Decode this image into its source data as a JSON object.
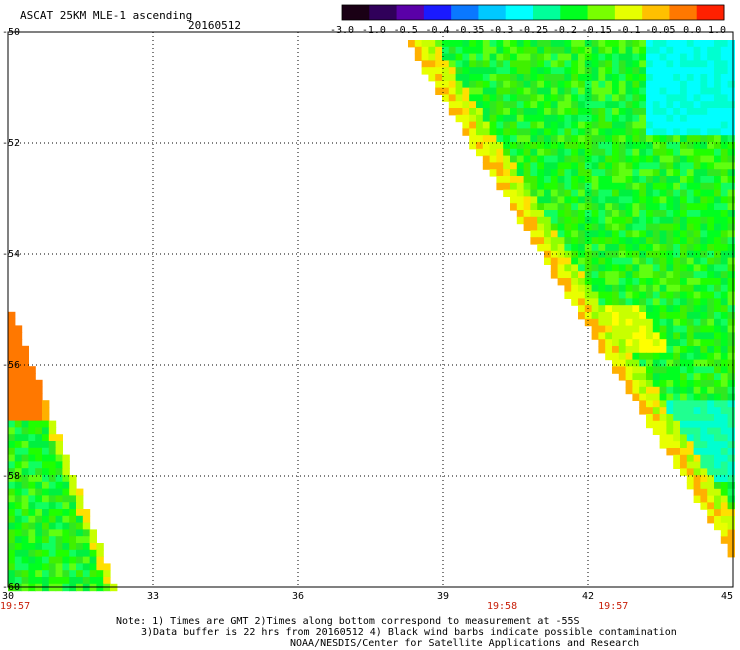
{
  "header": {
    "title": "ASCAT 25KM MLE-1 ascending",
    "date": "20160512"
  },
  "colorbar": {
    "tick_labels": [
      "-3.0",
      "-1.0",
      "-0.5",
      "-0.4",
      "-0.35",
      "-0.3",
      "-0.25",
      "-0.2",
      "-0.15",
      "-0.1",
      "-0.05",
      "0.0",
      "1.0"
    ],
    "colors": [
      "#1a0015",
      "#30005a",
      "#5a00a8",
      "#1a1aff",
      "#0a78ff",
      "#00c8ff",
      "#00ffff",
      "#00ff9a",
      "#00ff20",
      "#78ff00",
      "#e6ff00",
      "#ffc000",
      "#ff7800",
      "#ff2000"
    ]
  },
  "map": {
    "lon_range": [
      30,
      45
    ],
    "lat_range": [
      -60,
      -50
    ],
    "lon_ticks": [
      "30",
      "33",
      "36",
      "39",
      "42",
      "45"
    ],
    "lat_ticks": [
      "-50",
      "-52",
      "-54",
      "-56",
      "-58",
      "-60"
    ],
    "grid": true,
    "time_labels": [
      {
        "text": "19:57",
        "lon": 30.0
      },
      {
        "text": "19:58",
        "lon": 40.2
      },
      {
        "text": "19:57",
        "lon": 42.5
      }
    ]
  },
  "notes": {
    "line1": "Note: 1) Times are GMT 2)Times along bottom correspond to measurement at -55S",
    "line2": "3)Data buffer is 22 hrs from 20160512 4) Black wind barbs indicate possible contamination",
    "line3": "NOAA/NESDIS/Center for Satellite Applications and Research"
  }
}
